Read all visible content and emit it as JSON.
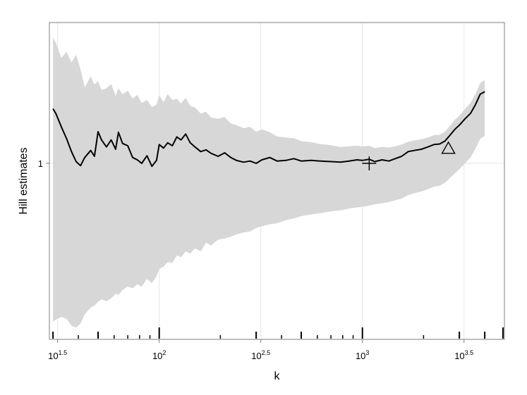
{
  "chart_data": {
    "type": "line",
    "title": "",
    "xlabel": "k",
    "ylabel": "Hill estimates",
    "x_scale": "log10",
    "xlim": [
      28.8,
      5000
    ],
    "ylim": [
      0.7,
      1.24
    ],
    "grid": true,
    "legend": "none",
    "x_ticks": [
      {
        "value": 31.6,
        "base": "10",
        "exp": "1.5"
      },
      {
        "value": 100,
        "base": "10",
        "exp": "2"
      },
      {
        "value": 316.2,
        "base": "10",
        "exp": "2.5"
      },
      {
        "value": 1000,
        "base": "10",
        "exp": "3"
      },
      {
        "value": 3162.3,
        "base": "10",
        "exp": "3.5"
      }
    ],
    "y_ticks": [
      {
        "value": 1,
        "label": "1"
      }
    ],
    "series": [
      {
        "name": "",
        "color": "#000000",
        "points": [
          [
            30,
            1.093
          ],
          [
            31,
            1.085
          ],
          [
            33,
            1.062
          ],
          [
            35,
            1.042
          ],
          [
            37,
            1.02
          ],
          [
            39,
            1.003
          ],
          [
            41,
            0.996
          ],
          [
            43,
            1.01
          ],
          [
            46,
            1.022
          ],
          [
            48,
            1.012
          ],
          [
            50,
            1.054
          ],
          [
            52,
            1.04
          ],
          [
            55,
            1.028
          ],
          [
            58,
            1.04
          ],
          [
            61,
            1.024
          ],
          [
            63,
            1.053
          ],
          [
            66,
            1.034
          ],
          [
            70,
            1.03
          ],
          [
            74,
            1.01
          ],
          [
            78,
            1.006
          ],
          [
            82,
            1.0
          ],
          [
            87,
            1.013
          ],
          [
            92,
            0.995
          ],
          [
            97,
            1.005
          ],
          [
            100,
            1.032
          ],
          [
            105,
            1.026
          ],
          [
            110,
            1.035
          ],
          [
            116,
            1.03
          ],
          [
            122,
            1.045
          ],
          [
            128,
            1.04
          ],
          [
            135,
            1.05
          ],
          [
            142,
            1.035
          ],
          [
            150,
            1.028
          ],
          [
            160,
            1.02
          ],
          [
            170,
            1.023
          ],
          [
            180,
            1.017
          ],
          [
            195,
            1.012
          ],
          [
            210,
            1.018
          ],
          [
            225,
            1.01
          ],
          [
            240,
            1.005
          ],
          [
            260,
            1.002
          ],
          [
            280,
            1.004
          ],
          [
            300,
            1.0
          ],
          [
            320,
            1.006
          ],
          [
            350,
            1.01
          ],
          [
            380,
            1.004
          ],
          [
            420,
            1.005
          ],
          [
            460,
            1.008
          ],
          [
            500,
            1.004
          ],
          [
            560,
            1.005
          ],
          [
            620,
            1.004
          ],
          [
            700,
            1.003
          ],
          [
            780,
            1.002
          ],
          [
            860,
            1.004
          ],
          [
            940,
            1.006
          ],
          [
            1000,
            1.005
          ],
          [
            1080,
            1.007
          ],
          [
            1150,
            1.003
          ],
          [
            1250,
            1.006
          ],
          [
            1350,
            1.004
          ],
          [
            1450,
            1.008
          ],
          [
            1560,
            1.012
          ],
          [
            1680,
            1.02
          ],
          [
            1800,
            1.022
          ],
          [
            1950,
            1.024
          ],
          [
            2100,
            1.028
          ],
          [
            2250,
            1.032
          ],
          [
            2400,
            1.033
          ],
          [
            2550,
            1.038
          ],
          [
            2700,
            1.048
          ],
          [
            2850,
            1.058
          ],
          [
            3000,
            1.065
          ],
          [
            3200,
            1.076
          ],
          [
            3400,
            1.085
          ],
          [
            3600,
            1.1
          ],
          [
            3800,
            1.118
          ],
          [
            4000,
            1.122
          ]
        ]
      }
    ],
    "confidence_band": {
      "color": "#d7d7d7",
      "points": [
        [
          30,
          1.215,
          0.73
        ],
        [
          31,
          1.205,
          0.734
        ],
        [
          33,
          1.18,
          0.738
        ],
        [
          35,
          1.19,
          0.735
        ],
        [
          37,
          1.172,
          0.723
        ],
        [
          39,
          1.185,
          0.72
        ],
        [
          41,
          1.16,
          0.727
        ],
        [
          43,
          1.13,
          0.743
        ],
        [
          46,
          1.148,
          0.754
        ],
        [
          48,
          1.134,
          0.758
        ],
        [
          50,
          1.14,
          0.764
        ],
        [
          52,
          1.125,
          0.768
        ],
        [
          55,
          1.128,
          0.765
        ],
        [
          58,
          1.135,
          0.77
        ],
        [
          61,
          1.115,
          0.778
        ],
        [
          63,
          1.128,
          0.776
        ],
        [
          66,
          1.118,
          0.784
        ],
        [
          70,
          1.124,
          0.79
        ],
        [
          74,
          1.11,
          0.787
        ],
        [
          78,
          1.117,
          0.794
        ],
        [
          82,
          1.103,
          0.79
        ],
        [
          87,
          1.108,
          0.803
        ],
        [
          92,
          1.096,
          0.796
        ],
        [
          97,
          1.1,
          0.808
        ],
        [
          100,
          1.116,
          0.82
        ],
        [
          105,
          1.104,
          0.824
        ],
        [
          110,
          1.118,
          0.832
        ],
        [
          116,
          1.108,
          0.83
        ],
        [
          122,
          1.11,
          0.843
        ],
        [
          128,
          1.102,
          0.84
        ],
        [
          135,
          1.112,
          0.85
        ],
        [
          142,
          1.098,
          0.846
        ],
        [
          150,
          1.095,
          0.855
        ],
        [
          160,
          1.085,
          0.85
        ],
        [
          170,
          1.088,
          0.865
        ],
        [
          180,
          1.078,
          0.86
        ],
        [
          195,
          1.076,
          0.87
        ],
        [
          210,
          1.079,
          0.872
        ],
        [
          225,
          1.068,
          0.875
        ],
        [
          240,
          1.065,
          0.879
        ],
        [
          260,
          1.06,
          0.882
        ],
        [
          280,
          1.062,
          0.884
        ],
        [
          300,
          1.054,
          0.89
        ],
        [
          320,
          1.058,
          0.893
        ],
        [
          350,
          1.053,
          0.896
        ],
        [
          380,
          1.046,
          0.898
        ],
        [
          420,
          1.044,
          0.903
        ],
        [
          460,
          1.043,
          0.906
        ],
        [
          500,
          1.038,
          0.91
        ],
        [
          560,
          1.036,
          0.913
        ],
        [
          620,
          1.033,
          0.915
        ],
        [
          700,
          1.031,
          0.918
        ],
        [
          780,
          1.028,
          0.92
        ],
        [
          860,
          1.029,
          0.923
        ],
        [
          940,
          1.03,
          0.925
        ],
        [
          1000,
          1.029,
          0.926
        ],
        [
          1080,
          1.03,
          0.928
        ],
        [
          1150,
          1.026,
          0.93
        ],
        [
          1250,
          1.028,
          0.932
        ],
        [
          1350,
          1.027,
          0.934
        ],
        [
          1450,
          1.029,
          0.937
        ],
        [
          1560,
          1.032,
          0.94
        ],
        [
          1680,
          1.037,
          0.946
        ],
        [
          1800,
          1.039,
          0.949
        ],
        [
          1950,
          1.041,
          0.952
        ],
        [
          2100,
          1.044,
          0.956
        ],
        [
          2250,
          1.048,
          0.96
        ],
        [
          2400,
          1.049,
          0.962
        ],
        [
          2550,
          1.054,
          0.967
        ],
        [
          2700,
          1.064,
          0.975
        ],
        [
          2850,
          1.074,
          0.983
        ],
        [
          3000,
          1.081,
          0.99
        ],
        [
          3200,
          1.093,
          1.0
        ],
        [
          3400,
          1.103,
          1.01
        ],
        [
          3600,
          1.118,
          1.025
        ],
        [
          3800,
          1.137,
          1.042
        ],
        [
          4000,
          1.142,
          1.047
        ]
      ]
    },
    "markers": [
      {
        "shape": "plus",
        "x": 1080,
        "y": 1.0
      },
      {
        "shape": "triangle",
        "x": 2650,
        "y": 1.023
      }
    ],
    "rug_ticks": {
      "major": [
        100,
        1000,
        5000
      ],
      "medium": [
        30,
        50,
        300,
        500,
        3000,
        4000
      ],
      "minor": [
        40,
        60,
        70,
        80,
        90,
        200,
        400,
        600,
        700,
        800,
        900,
        2000
      ]
    }
  }
}
